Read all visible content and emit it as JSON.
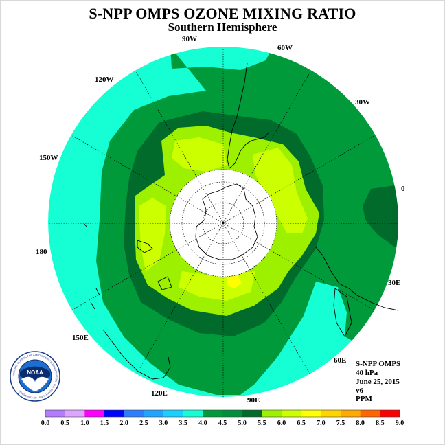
{
  "title": "S-NPP OMPS OZONE MIXING RATIO",
  "subtitle": "Southern Hemisphere",
  "longitude_labels": [
    "90W",
    "60W",
    "30W",
    "0",
    "30E",
    "60E",
    "90E",
    "120E",
    "150E",
    "180",
    "150W",
    "120W"
  ],
  "info": {
    "product": "S-NPP OMPS",
    "level": "40 hPa",
    "date": "June 25, 2015",
    "version": "v6",
    "units": "PPM"
  },
  "logo_text": "NOAA",
  "logo_ring_text": "NATIONAL OCEANIC AND ATMOSPHERIC ADMINISTRATION · U.S. DEPARTMENT OF COMMERCE",
  "color_scale": {
    "ticks": [
      "0.0",
      "0.5",
      "1.0",
      "1.5",
      "2.0",
      "2.5",
      "3.0",
      "3.5",
      "4.0",
      "4.5",
      "5.0",
      "5.5",
      "6.0",
      "6.5",
      "7.0",
      "7.5",
      "8.0",
      "8.5",
      "9.0"
    ],
    "colors": [
      "#b57bff",
      "#dea4ff",
      "#ff00ff",
      "#0000ff",
      "#2f7dff",
      "#1fa5ff",
      "#1bcfff",
      "#16ffd4",
      "#009a3a",
      "#008f3a",
      "#006b2b",
      "#9cf000",
      "#ccff00",
      "#ffff00",
      "#ffd500",
      "#ffaa00",
      "#ff6600",
      "#ff0000",
      "#8b5a2b"
    ]
  },
  "palette": {
    "cyan": "#16ffd4",
    "green": "#009a3a",
    "dark_green": "#006b2b",
    "lime": "#9cf000",
    "yellow_green": "#ccff00",
    "yellow": "#ffff00"
  }
}
